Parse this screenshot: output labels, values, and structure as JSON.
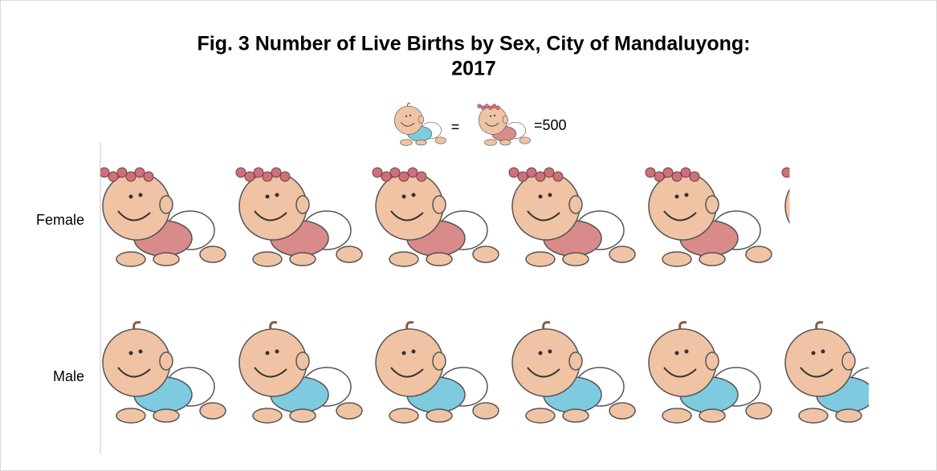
{
  "chart_data": {
    "type": "pictograph",
    "title_lines": [
      "Fig. 3 Number of Live Births by Sex, City of Mandaluyong:",
      "2017"
    ],
    "legend_equals": "=",
    "unit": {
      "value": 500,
      "label": "=500"
    },
    "categories": [
      "Female",
      "Male"
    ],
    "values": [
      2525,
      2815
    ],
    "colors": [
      "#d98a8a",
      "#7ecbe0"
    ]
  }
}
